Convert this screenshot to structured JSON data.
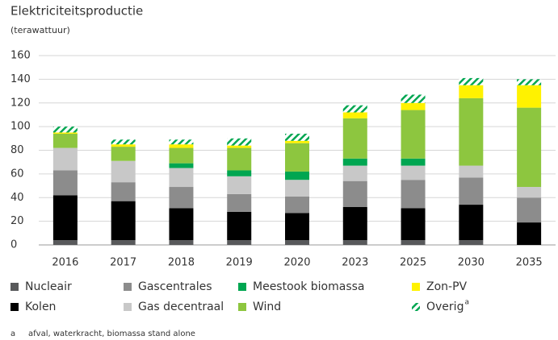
{
  "chart_data": {
    "type": "stacked_bar",
    "title": "Elektriciteitsproductie",
    "subtitle": "(terawattuur)",
    "categories": [
      "2016",
      "2017",
      "2018",
      "2019",
      "2020",
      "2023",
      "2025",
      "2030",
      "2035"
    ],
    "series": [
      {
        "name": "Nucleair",
        "color": "#58595b",
        "values": [
          4,
          4,
          4,
          4,
          4,
          4,
          4,
          4,
          0
        ]
      },
      {
        "name": "Kolen",
        "color": "#000000",
        "values": [
          38,
          33,
          27,
          24,
          23,
          28,
          27,
          30,
          19
        ]
      },
      {
        "name": "Gascentrales",
        "color": "#8c8c8c",
        "values": [
          21,
          16,
          18,
          15,
          14,
          22,
          24,
          23,
          21
        ]
      },
      {
        "name": "Gas decentraal",
        "color": "#c8c8c8",
        "values": [
          19,
          18,
          16,
          15,
          14,
          13,
          12,
          10,
          9
        ]
      },
      {
        "name": "Meestook biomassa",
        "color": "#00a651",
        "values": [
          0,
          0,
          4,
          5,
          7,
          6,
          6,
          0,
          0
        ]
      },
      {
        "name": "Wind",
        "color": "#8dc63f",
        "values": [
          12,
          12,
          13,
          19,
          24,
          34,
          41,
          57,
          67
        ]
      },
      {
        "name": "Zon-PV",
        "color": "#fff200",
        "values": [
          1,
          2,
          3,
          2,
          2,
          5,
          6,
          11,
          19
        ]
      },
      {
        "name": "Overig",
        "color": "#00a651",
        "pattern": "hatch",
        "values": [
          5,
          4,
          4,
          6,
          6,
          6,
          7,
          6,
          5
        ]
      }
    ],
    "footnote": {
      "marker": "a",
      "text": "afval, waterkracht, biomassa stand alone"
    },
    "ylim": [
      0,
      160
    ],
    "yticks": [
      0,
      20,
      40,
      60,
      80,
      100,
      120,
      140,
      160
    ],
    "grid": true
  }
}
